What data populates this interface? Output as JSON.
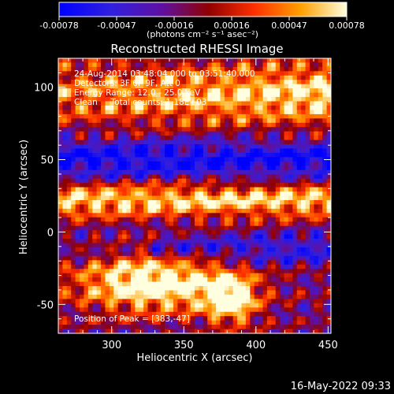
{
  "colorbar": {
    "tick_labels": [
      "-0.00078",
      "-0.00047",
      "-0.00016",
      "0.00016",
      "0.00047",
      "0.00078"
    ],
    "unit_label": "(photons cm⁻² s⁻¹ asec⁻²)"
  },
  "footer": {
    "timestamp": "16-May-2022 09:33"
  },
  "chart_data": {
    "type": "heatmap",
    "title": "Reconstructed RHESSI Image",
    "xlabel": "Heliocentric X (arcsec)",
    "ylabel": "Heliocentric Y (arcsec)",
    "xlim": [
      263,
      452
    ],
    "ylim": [
      -70,
      120
    ],
    "x_ticks": [
      300,
      350,
      400,
      450
    ],
    "y_ticks": [
      -50,
      0,
      50,
      100
    ],
    "color_range": [
      -0.00078,
      0.00078
    ],
    "colormap": [
      "#0000ff",
      "#4020c0",
      "#6010a0",
      "#a00000",
      "#ff4000",
      "#ffb000",
      "#ffff80"
    ],
    "annotations": [
      "24-Aug-2014 03:48:04.000 to 03:51:40.000",
      "Detectors: 3F 6F 9F, Att 0",
      "Energy Range: 12.0 - 25.0 keV",
      "Clean     Total counts: 1.18E+03"
    ],
    "peak_label": "Position of Peak = [383,-47]",
    "peak": {
      "x": 383,
      "y": -47
    }
  }
}
